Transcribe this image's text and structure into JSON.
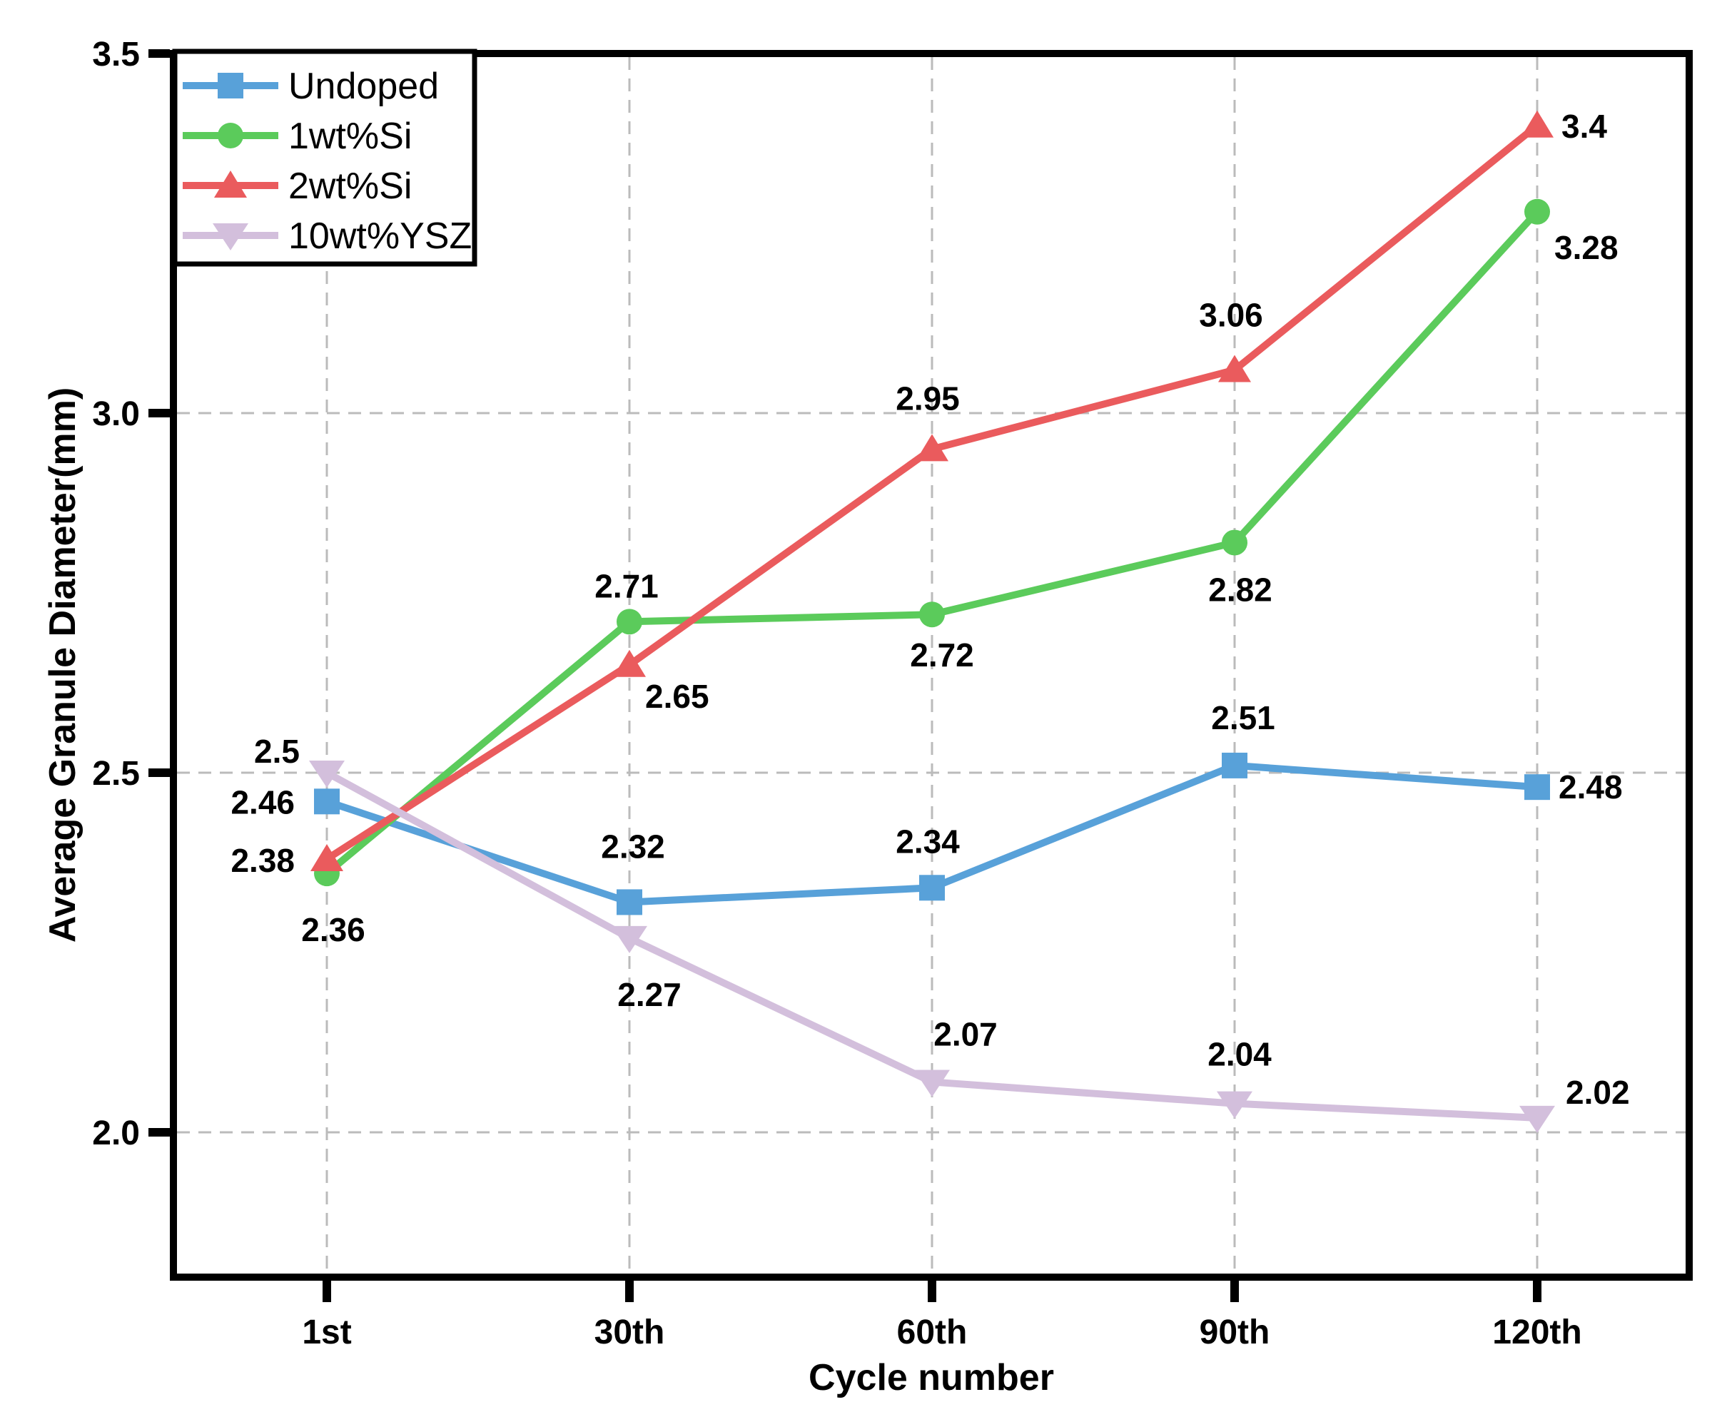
{
  "chart_data": {
    "type": "line",
    "title": "",
    "xlabel": "Cycle number",
    "ylabel": "Average Granule Diameter(mm)",
    "categories": [
      "1st",
      "30th",
      "60th",
      "90th",
      "120th"
    ],
    "y_ticks": [
      {
        "label": "2.0",
        "value": 2.0,
        "gridline": true
      },
      {
        "label": "2.5",
        "value": 2.5,
        "gridline": true
      },
      {
        "label": "3.0",
        "value": 3.0,
        "gridline": true
      },
      {
        "label": "3.5",
        "value": 3.5,
        "gridline": false
      }
    ],
    "ylim": [
      1.8,
      3.5
    ],
    "grid": {
      "show": true,
      "style": "dashed",
      "vertical": true,
      "horizontal": true,
      "color": "#bbbbbb"
    },
    "legend": {
      "position": "top-left-inside",
      "border_color": "#000000"
    },
    "series": [
      {
        "name": "Undoped",
        "color": "#58A1D9",
        "marker": "square",
        "values": [
          2.46,
          2.32,
          2.34,
          2.51,
          2.48
        ],
        "point_labels": [
          "2.46",
          "2.32",
          "2.34",
          "2.51",
          "2.48"
        ],
        "label_placement": [
          {
            "dx": -45,
            "dy": 17,
            "anchor": "end"
          },
          {
            "dx": 5,
            "dy": -62,
            "anchor": "middle"
          },
          {
            "dx": -6,
            "dy": -49,
            "anchor": "middle"
          },
          {
            "dx": 12,
            "dy": -51,
            "anchor": "middle"
          },
          {
            "dx": 30,
            "dy": 16,
            "anchor": "start"
          }
        ]
      },
      {
        "name": "1wt%Si",
        "color": "#5BCB5B",
        "marker": "circle",
        "values": [
          2.36,
          2.71,
          2.72,
          2.82,
          3.28
        ],
        "point_labels": [
          "2.36",
          "2.71",
          "2.72",
          "2.82",
          "3.28"
        ],
        "label_placement": [
          {
            "dx": 9,
            "dy": 95,
            "anchor": "middle"
          },
          {
            "dx": -4,
            "dy": -34,
            "anchor": "middle"
          },
          {
            "dx": 14,
            "dy": 73,
            "anchor": "middle"
          },
          {
            "dx": 8,
            "dy": 82,
            "anchor": "middle"
          },
          {
            "dx": 24,
            "dy": 66,
            "anchor": "start"
          }
        ]
      },
      {
        "name": "2wt%Si",
        "color": "#EA5B5D",
        "marker": "triangle-up",
        "values": [
          2.38,
          2.65,
          2.95,
          3.06,
          3.4
        ],
        "point_labels": [
          "2.38",
          "2.65",
          "2.95",
          "3.06",
          "3.4"
        ],
        "label_placement": [
          {
            "dx": -45,
            "dy": 18,
            "anchor": "end"
          },
          {
            "dx": 22,
            "dy": 60,
            "anchor": "start"
          },
          {
            "dx": -6,
            "dy": -55,
            "anchor": "middle"
          },
          {
            "dx": -5,
            "dy": -61,
            "anchor": "middle"
          },
          {
            "dx": 34,
            "dy": 17,
            "anchor": "start"
          }
        ]
      },
      {
        "name": "10wt%YSZ",
        "color": "#D3BFDC",
        "marker": "triangle-down",
        "values": [
          2.5,
          2.27,
          2.07,
          2.04,
          2.02
        ],
        "point_labels": [
          "2.5",
          "2.27",
          "2.07",
          "2.04",
          "2.02"
        ],
        "label_placement": [
          {
            "dx": -38,
            "dy": -14,
            "anchor": "end"
          },
          {
            "dx": 28,
            "dy": 95,
            "anchor": "middle"
          },
          {
            "dx": 47,
            "dy": -51,
            "anchor": "middle"
          },
          {
            "dx": 7,
            "dy": -53,
            "anchor": "middle"
          },
          {
            "dx": 40,
            "dy": -20,
            "anchor": "start"
          }
        ]
      }
    ]
  }
}
